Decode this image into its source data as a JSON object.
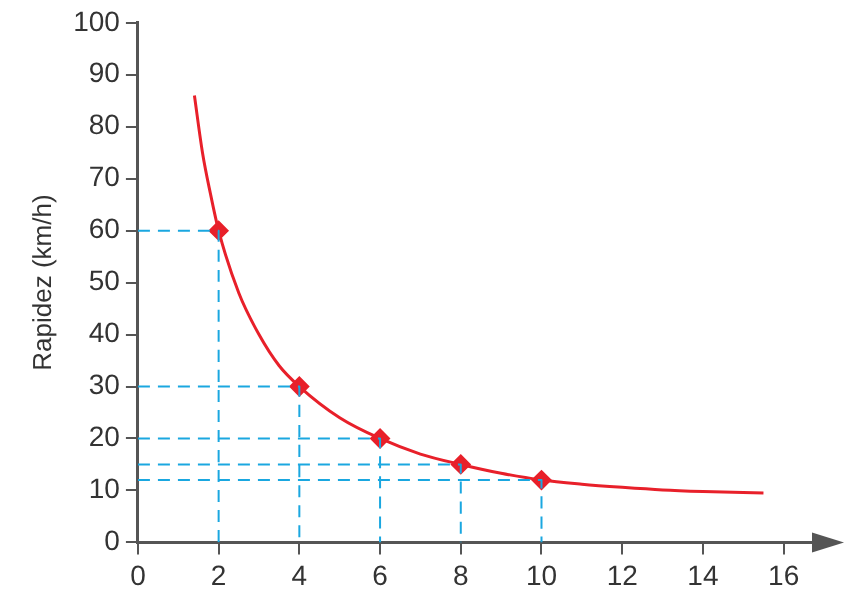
{
  "chart_data": {
    "type": "line",
    "ylabel": "Rapidez (km/h)",
    "xlim": [
      0,
      17
    ],
    "xticks": [
      0,
      2,
      4,
      6,
      8,
      10,
      12,
      14,
      16
    ],
    "ylim": [
      0,
      100
    ],
    "yticks": [
      0,
      10,
      20,
      30,
      40,
      50,
      60,
      70,
      80,
      90,
      100
    ],
    "grid": false,
    "legend": false,
    "series": [
      {
        "color": "#1aa7e0",
        "marker": "none",
        "line_style": "dashed",
        "x": [
          0,
          2,
          2
        ],
        "values": [
          60,
          60,
          0
        ]
      },
      {
        "color": "#1aa7e0",
        "marker": "none",
        "line_style": "dashed",
        "x": [
          0,
          4,
          4
        ],
        "values": [
          30,
          30,
          0
        ]
      },
      {
        "color": "#1aa7e0",
        "marker": "none",
        "line_style": "dashed",
        "x": [
          0,
          6,
          6
        ],
        "values": [
          20,
          20,
          0
        ]
      },
      {
        "color": "#1aa7e0",
        "marker": "none",
        "line_style": "dashed",
        "x": [
          0,
          8,
          8
        ],
        "values": [
          15,
          15,
          0
        ]
      },
      {
        "color": "#1aa7e0",
        "marker": "none",
        "line_style": "dashed",
        "x": [
          0,
          10,
          10
        ],
        "values": [
          12,
          12,
          0
        ]
      },
      {
        "color": "#e8202a",
        "marker": "none",
        "x": [
          1.4,
          1.6,
          1.8,
          2,
          2.5,
          3,
          3.5,
          4,
          5,
          6,
          7,
          8,
          9,
          10,
          11,
          12,
          13,
          14,
          15.5
        ],
        "values": [
          86,
          75,
          67,
          60,
          48,
          40,
          34,
          30,
          24,
          20,
          17,
          15,
          13.3,
          12,
          11.2,
          10.6,
          10.1,
          9.8,
          9.5
        ]
      },
      {
        "type": "scatter",
        "color": "#e8202a",
        "marker": "diamond",
        "x": [
          2,
          4,
          6,
          8,
          10
        ],
        "values": [
          60,
          30,
          20,
          15,
          12
        ]
      }
    ]
  }
}
